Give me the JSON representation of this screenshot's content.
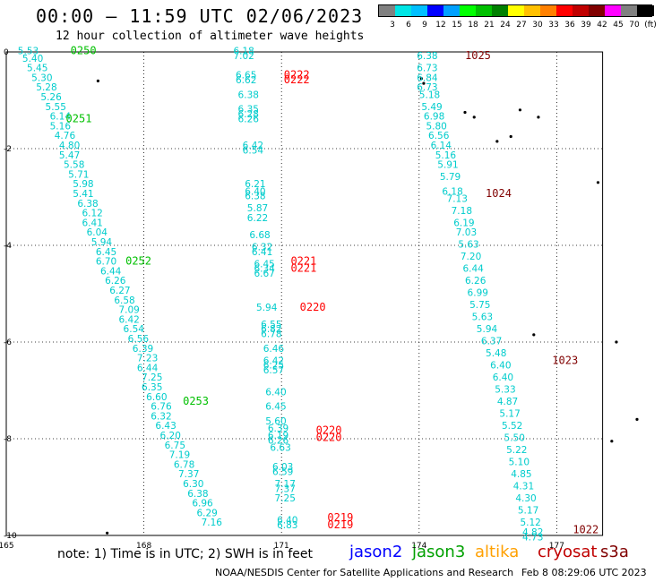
{
  "title": "00:00 – 11:59 UTC 02/06/2023",
  "subtitle": "12 hour collection of altimeter wave heights",
  "legend": {
    "colors": [
      "#808080",
      "#00e5e5",
      "#00bfff",
      "#0000ff",
      "#00a0ff",
      "#00ff00",
      "#00c000",
      "#008000",
      "#ffff00",
      "#ffc000",
      "#ff8000",
      "#ff0000",
      "#c00000",
      "#800000",
      "#ff00ff",
      "#808080",
      "#000000"
    ],
    "labels": [
      "3",
      "6",
      "9",
      "12",
      "15",
      "18",
      "21",
      "24",
      "27",
      "30",
      "33",
      "36",
      "39",
      "42",
      "45",
      "70",
      "(ft)"
    ]
  },
  "axes": {
    "y_ticks": [
      "0",
      "-2",
      "-4",
      "-6",
      "-8",
      "-10"
    ],
    "x_ticks": [
      "165",
      "168",
      "171",
      "174",
      "177"
    ]
  },
  "track_colors": {
    "jason3": "#00c000",
    "cryosat": "#800000",
    "s3a": "#ff0000",
    "swh": "#00cccc"
  },
  "tracks": [
    {
      "time_color": "jason3",
      "times": [
        {
          "t": "0250",
          "lon": 166.4,
          "lat": -0.05
        },
        {
          "t": "0251",
          "lon": 166.3,
          "lat": -1.45
        },
        {
          "t": "0252",
          "lon": 167.6,
          "lat": -4.4
        },
        {
          "t": "0253",
          "lon": 168.85,
          "lat": -7.3
        }
      ],
      "points": [
        {
          "v": "5.53",
          "lon": 165.25,
          "lat": -0.05
        },
        {
          "v": "5.40",
          "lon": 165.35,
          "lat": -0.2
        },
        {
          "v": "5.45",
          "lon": 165.45,
          "lat": -0.4
        },
        {
          "v": "5.30",
          "lon": 165.55,
          "lat": -0.6
        },
        {
          "v": "5.28",
          "lon": 165.65,
          "lat": -0.8
        },
        {
          "v": "5.26",
          "lon": 165.75,
          "lat": -1.0
        },
        {
          "v": "5.55",
          "lon": 165.85,
          "lat": -1.2
        },
        {
          "v": "6.14",
          "lon": 165.95,
          "lat": -1.4
        },
        {
          "v": "5.16",
          "lon": 165.95,
          "lat": -1.6
        },
        {
          "v": "4.76",
          "lon": 166.05,
          "lat": -1.8
        },
        {
          "v": "4.80",
          "lon": 166.15,
          "lat": -2.0
        },
        {
          "v": "5.47",
          "lon": 166.15,
          "lat": -2.2
        },
        {
          "v": "5.58",
          "lon": 166.25,
          "lat": -2.4
        },
        {
          "v": "5.71",
          "lon": 166.35,
          "lat": -2.6
        },
        {
          "v": "5.98",
          "lon": 166.45,
          "lat": -2.8
        },
        {
          "v": "5.41",
          "lon": 166.45,
          "lat": -3.0
        },
        {
          "v": "6.38",
          "lon": 166.55,
          "lat": -3.2
        },
        {
          "v": "6.12",
          "lon": 166.65,
          "lat": -3.4
        },
        {
          "v": "6.41",
          "lon": 166.65,
          "lat": -3.6
        },
        {
          "v": "6.04",
          "lon": 166.75,
          "lat": -3.8
        },
        {
          "v": "5.94",
          "lon": 166.85,
          "lat": -4.0
        },
        {
          "v": "6.45",
          "lon": 166.95,
          "lat": -4.2
        },
        {
          "v": "6.70",
          "lon": 166.95,
          "lat": -4.4
        },
        {
          "v": "6.44",
          "lon": 167.05,
          "lat": -4.6
        },
        {
          "v": "6.26",
          "lon": 167.15,
          "lat": -4.8
        },
        {
          "v": "6.27",
          "lon": 167.25,
          "lat": -5.0
        },
        {
          "v": "6.58",
          "lon": 167.35,
          "lat": -5.2
        },
        {
          "v": "7.09",
          "lon": 167.45,
          "lat": -5.4
        },
        {
          "v": "6.42",
          "lon": 167.45,
          "lat": -5.6
        },
        {
          "v": "6.54",
          "lon": 167.55,
          "lat": -5.8
        },
        {
          "v": "6.56",
          "lon": 167.65,
          "lat": -6.0
        },
        {
          "v": "6.39",
          "lon": 167.75,
          "lat": -6.2
        },
        {
          "v": "7.23",
          "lon": 167.85,
          "lat": -6.4
        },
        {
          "v": "6.44",
          "lon": 167.85,
          "lat": -6.6
        },
        {
          "v": "7.25",
          "lon": 167.95,
          "lat": -6.8
        },
        {
          "v": "6.35",
          "lon": 167.95,
          "lat": -7.0
        },
        {
          "v": "6.60",
          "lon": 168.05,
          "lat": -7.2
        },
        {
          "v": "6.76",
          "lon": 168.15,
          "lat": -7.4
        },
        {
          "v": "6.32",
          "lon": 168.15,
          "lat": -7.6
        },
        {
          "v": "6.43",
          "lon": 168.25,
          "lat": -7.8
        },
        {
          "v": "6.20",
          "lon": 168.35,
          "lat": -8.0
        },
        {
          "v": "6.75",
          "lon": 168.45,
          "lat": -8.2
        },
        {
          "v": "7.19",
          "lon": 168.55,
          "lat": -8.4
        },
        {
          "v": "6.78",
          "lon": 168.65,
          "lat": -8.6
        },
        {
          "v": "7.37",
          "lon": 168.75,
          "lat": -8.8
        },
        {
          "v": "6.30",
          "lon": 168.85,
          "lat": -9.0
        },
        {
          "v": "6.38",
          "lon": 168.95,
          "lat": -9.2
        },
        {
          "v": "6.96",
          "lon": 169.05,
          "lat": -9.4
        },
        {
          "v": "6.29",
          "lon": 169.15,
          "lat": -9.6
        },
        {
          "v": "7.16",
          "lon": 169.25,
          "lat": -9.8
        }
      ]
    },
    {
      "time_color": "s3a",
      "times": [
        {
          "t": "0222",
          "lon": 171.05,
          "lat": -0.55
        },
        {
          "t": "0222",
          "lon": 171.05,
          "lat": -0.65
        },
        {
          "t": "0221",
          "lon": 171.2,
          "lat": -4.4
        },
        {
          "t": "0221",
          "lon": 171.2,
          "lat": -4.55
        },
        {
          "t": "0220",
          "lon": 171.4,
          "lat": -5.35
        },
        {
          "t": "0220",
          "lon": 171.75,
          "lat": -7.9
        },
        {
          "t": "0220",
          "lon": 171.75,
          "lat": -8.05
        },
        {
          "t": "0219",
          "lon": 172.0,
          "lat": -9.7
        },
        {
          "t": "0219",
          "lon": 172.0,
          "lat": -9.85
        }
      ],
      "points": [
        {
          "v": "6.18",
          "lon": 169.95,
          "lat": -0.05
        },
        {
          "v": "7.02",
          "lon": 169.95,
          "lat": -0.15
        },
        {
          "v": "6.65",
          "lon": 170.0,
          "lat": -0.55
        },
        {
          "v": "6.62",
          "lon": 170.0,
          "lat": -0.65
        },
        {
          "v": "6.38",
          "lon": 170.05,
          "lat": -0.95
        },
        {
          "v": "6.35",
          "lon": 170.05,
          "lat": -1.25
        },
        {
          "v": "6.28",
          "lon": 170.05,
          "lat": -1.35
        },
        {
          "v": "6.26",
          "lon": 170.05,
          "lat": -1.45
        },
        {
          "v": "6.42",
          "lon": 170.15,
          "lat": -2.0
        },
        {
          "v": "6.54",
          "lon": 170.15,
          "lat": -2.1
        },
        {
          "v": "6.21",
          "lon": 170.2,
          "lat": -2.8
        },
        {
          "v": "6.40",
          "lon": 170.2,
          "lat": -2.95
        },
        {
          "v": "6.38",
          "lon": 170.2,
          "lat": -3.05
        },
        {
          "v": "5.87",
          "lon": 170.25,
          "lat": -3.3
        },
        {
          "v": "6.22",
          "lon": 170.25,
          "lat": -3.5
        },
        {
          "v": "6.68",
          "lon": 170.3,
          "lat": -3.85
        },
        {
          "v": "6.32",
          "lon": 170.35,
          "lat": -4.1
        },
        {
          "v": "6.41",
          "lon": 170.35,
          "lat": -4.2
        },
        {
          "v": "6.45",
          "lon": 170.4,
          "lat": -4.45
        },
        {
          "v": "6.34",
          "lon": 170.4,
          "lat": -4.55
        },
        {
          "v": "6.67",
          "lon": 170.4,
          "lat": -4.65
        },
        {
          "v": "5.94",
          "lon": 170.45,
          "lat": -5.35
        },
        {
          "v": "6.55",
          "lon": 170.55,
          "lat": -5.7
        },
        {
          "v": "6.82",
          "lon": 170.55,
          "lat": -5.8
        },
        {
          "v": "6.78",
          "lon": 170.55,
          "lat": -5.9
        },
        {
          "v": "6.46",
          "lon": 170.6,
          "lat": -6.2
        },
        {
          "v": "6.42",
          "lon": 170.6,
          "lat": -6.45
        },
        {
          "v": "6.25",
          "lon": 170.6,
          "lat": -6.55
        },
        {
          "v": "6.57",
          "lon": 170.6,
          "lat": -6.65
        },
        {
          "v": "6.40",
          "lon": 170.65,
          "lat": -7.1
        },
        {
          "v": "6.45",
          "lon": 170.65,
          "lat": -7.4
        },
        {
          "v": "5.60",
          "lon": 170.65,
          "lat": -7.7
        },
        {
          "v": "6.39",
          "lon": 170.7,
          "lat": -7.85
        },
        {
          "v": "6.19",
          "lon": 170.7,
          "lat": -8.0
        },
        {
          "v": "6.26",
          "lon": 170.7,
          "lat": -8.1
        },
        {
          "v": "6.63",
          "lon": 170.75,
          "lat": -8.25
        },
        {
          "v": "6.03",
          "lon": 170.8,
          "lat": -8.65
        },
        {
          "v": "6.59",
          "lon": 170.8,
          "lat": -8.75
        },
        {
          "v": "7.17",
          "lon": 170.85,
          "lat": -9.0
        },
        {
          "v": "7.37",
          "lon": 170.85,
          "lat": -9.1
        },
        {
          "v": "7.25",
          "lon": 170.85,
          "lat": -9.3
        },
        {
          "v": "6.40",
          "lon": 170.9,
          "lat": -9.75
        },
        {
          "v": "6.83",
          "lon": 170.9,
          "lat": -9.85
        }
      ]
    },
    {
      "time_color": "cryosat",
      "times": [
        {
          "t": "1025",
          "lon": 175.0,
          "lat": -0.15
        },
        {
          "t": "1024",
          "lon": 175.45,
          "lat": -3.0
        },
        {
          "t": "1023",
          "lon": 176.9,
          "lat": -6.45
        },
        {
          "t": "1022",
          "lon": 177.35,
          "lat": -9.95
        }
      ],
      "points": [
        {
          "v": "6.38",
          "lon": 173.95,
          "lat": -0.15
        },
        {
          "v": "6.73",
          "lon": 173.95,
          "lat": -0.4
        },
        {
          "v": "6.84",
          "lon": 173.95,
          "lat": -0.6
        },
        {
          "v": "6.73",
          "lon": 173.95,
          "lat": -0.8
        },
        {
          "v": "5.18",
          "lon": 174.0,
          "lat": -0.95
        },
        {
          "v": "5.49",
          "lon": 174.05,
          "lat": -1.2
        },
        {
          "v": "6.98",
          "lon": 174.1,
          "lat": -1.4
        },
        {
          "v": "5.80",
          "lon": 174.15,
          "lat": -1.6
        },
        {
          "v": "6.56",
          "lon": 174.2,
          "lat": -1.8
        },
        {
          "v": "6.14",
          "lon": 174.25,
          "lat": -2.0
        },
        {
          "v": "5.16",
          "lon": 174.35,
          "lat": -2.2
        },
        {
          "v": "5.91",
          "lon": 174.4,
          "lat": -2.4
        },
        {
          "v": "5.79",
          "lon": 174.45,
          "lat": -2.65
        },
        {
          "v": "6.18",
          "lon": 174.5,
          "lat": -2.95
        },
        {
          "v": "7.13",
          "lon": 174.6,
          "lat": -3.1
        },
        {
          "v": "7.18",
          "lon": 174.7,
          "lat": -3.35
        },
        {
          "v": "6.19",
          "lon": 174.75,
          "lat": -3.6
        },
        {
          "v": "7.03",
          "lon": 174.8,
          "lat": -3.8
        },
        {
          "v": "5.63",
          "lon": 174.85,
          "lat": -4.05
        },
        {
          "v": "7.20",
          "lon": 174.9,
          "lat": -4.3
        },
        {
          "v": "6.44",
          "lon": 174.95,
          "lat": -4.55
        },
        {
          "v": "6.26",
          "lon": 175.0,
          "lat": -4.8
        },
        {
          "v": "6.99",
          "lon": 175.05,
          "lat": -5.05
        },
        {
          "v": "5.75",
          "lon": 175.1,
          "lat": -5.3
        },
        {
          "v": "5.63",
          "lon": 175.15,
          "lat": -5.55
        },
        {
          "v": "5.94",
          "lon": 175.25,
          "lat": -5.8
        },
        {
          "v": "6.37",
          "lon": 175.35,
          "lat": -6.05
        },
        {
          "v": "5.48",
          "lon": 175.45,
          "lat": -6.3
        },
        {
          "v": "6.40",
          "lon": 175.55,
          "lat": -6.55
        },
        {
          "v": "6.40",
          "lon": 175.6,
          "lat": -6.8
        },
        {
          "v": "5.33",
          "lon": 175.65,
          "lat": -7.05
        },
        {
          "v": "4.87",
          "lon": 175.7,
          "lat": -7.3
        },
        {
          "v": "5.17",
          "lon": 175.75,
          "lat": -7.55
        },
        {
          "v": "5.52",
          "lon": 175.8,
          "lat": -7.8
        },
        {
          "v": "5.50",
          "lon": 175.85,
          "lat": -8.05
        },
        {
          "v": "5.22",
          "lon": 175.9,
          "lat": -8.3
        },
        {
          "v": "5.10",
          "lon": 175.95,
          "lat": -8.55
        },
        {
          "v": "4.85",
          "lon": 176.0,
          "lat": -8.8
        },
        {
          "v": "4.31",
          "lon": 176.05,
          "lat": -9.05
        },
        {
          "v": "4.30",
          "lon": 176.1,
          "lat": -9.3
        },
        {
          "v": "5.17",
          "lon": 176.15,
          "lat": -9.55
        },
        {
          "v": "5.12",
          "lon": 176.2,
          "lat": -9.8
        },
        {
          "v": "4.82",
          "lon": 176.25,
          "lat": -10.0
        },
        {
          "v": "4.73",
          "lon": 176.25,
          "lat": -10.1
        }
      ]
    }
  ],
  "note": "note: 1) Time is in UTC; 2) SWH is in feet",
  "missions": [
    {
      "name": "jason2",
      "color": "#0000ff"
    },
    {
      "name": "jason3",
      "color": "#00a000"
    },
    {
      "name": "altika",
      "color": "#ffa000"
    },
    {
      "name": "cryosat",
      "color": "#c00000"
    },
    {
      "name": "s3a",
      "color": "#800000"
    }
  ],
  "credit": "NOAA/NESDIS Center for Satellite Applications and Research",
  "credit_date": "Feb  8 08:29:06 UTC 2023"
}
